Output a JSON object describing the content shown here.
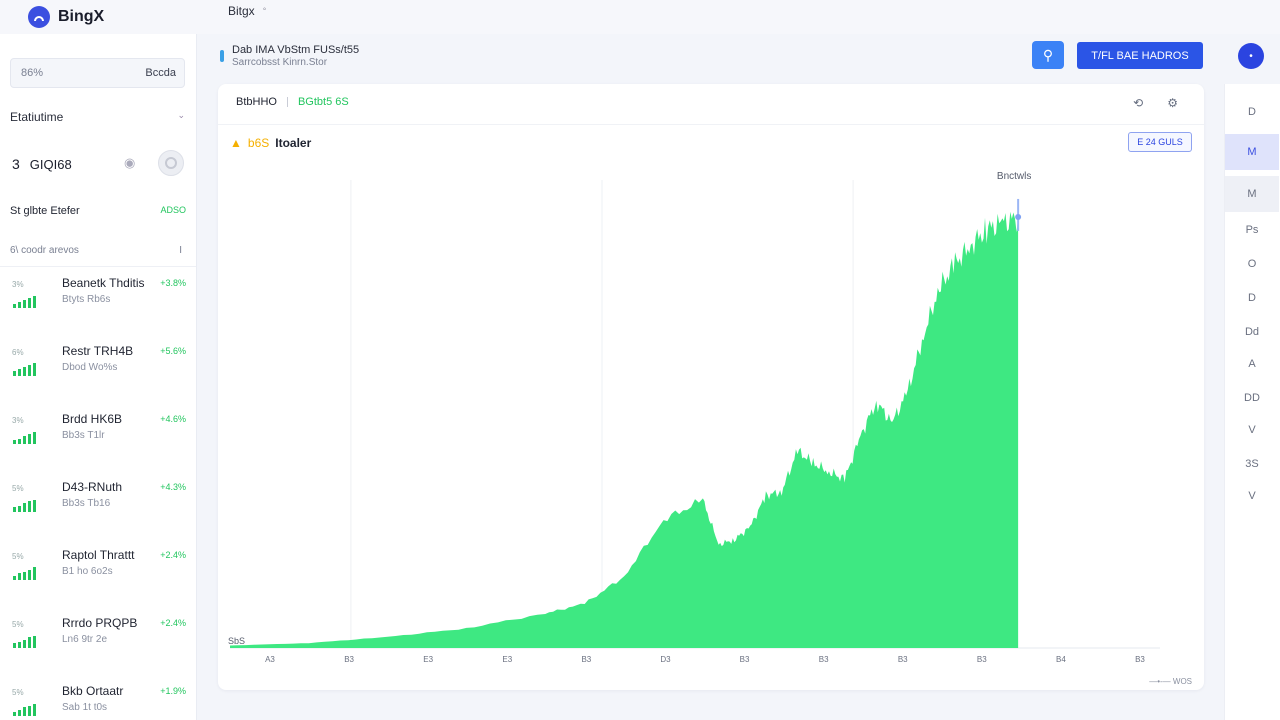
{
  "app": {
    "name": "BingX",
    "breadcrumb": "Bitgx",
    "breadcrumb_chevron": "chevron-down-icon"
  },
  "sidebar": {
    "search_placeholder": "86%",
    "search_selector": "Bccda",
    "section_title": "Etatiutime",
    "count_number": "3",
    "count_label": "GIQI68",
    "filter_label": "St glbte Etefer",
    "filter_value": "ADSO",
    "sub_label": "6\\ coodr arevos",
    "sub_value": "I",
    "assets": [
      {
        "name": "Beanetk Thditis",
        "sub": "Btyts Rb6s",
        "change": "+3.8%",
        "mini": "3%"
      },
      {
        "name": "Restr TRH4B",
        "sub": "Dbod Wo%s",
        "change": "+5.6%",
        "mini": "6%"
      },
      {
        "name": "Brdd HK6B",
        "sub": "Bb3s T1lr",
        "change": "+4.6%",
        "mini": "3%"
      },
      {
        "name": "D43-RNuth",
        "sub": "Bb3s Tb16",
        "change": "+4.3%",
        "mini": "5%"
      },
      {
        "name": "Raptol Thrattt",
        "sub": "B1 ho 6o2s",
        "change": "+2.4%",
        "mini": "5%"
      },
      {
        "name": "Rrrdo PRQPB",
        "sub": "Ln6 9tr 2e",
        "change": "+2.4%",
        "mini": "5%"
      },
      {
        "name": "Bkb Ortaatr",
        "sub": "Sab 1t t0s",
        "change": "+1.9%",
        "mini": "5%"
      }
    ]
  },
  "header": {
    "info_title": "Dab IMA VbStm FUSs/t55",
    "info_subtitle": "Sarrcobsst Kinrn.Stor",
    "action_button": "T/FL BAE HADROS",
    "avatar_initial": "•"
  },
  "card": {
    "pair": "BtbHHO",
    "status": "BGtbt5 6S",
    "refresh_icon": "refresh-icon",
    "settings_icon": "gear-icon",
    "chart_title_price": "b6S",
    "chart_title_label": "Itoaler",
    "range_button": "E 24 GULS",
    "footer": "—•-— WOS"
  },
  "rail": {
    "items": [
      "D",
      "M",
      "M",
      "Ps",
      "O",
      "D",
      "Dd",
      "A",
      "DD",
      "V",
      "3S",
      "V"
    ]
  },
  "colors": {
    "accent": "#2b55e6",
    "positive": "#22c55e",
    "chart_fill": "#3ee882",
    "warn": "#f5b000"
  },
  "chart_data": {
    "type": "area",
    "title": "Itoaler",
    "subtitle": "b6S",
    "annotation": "Bnctwls",
    "y_start_label": "SbS",
    "x_tick_labels": [
      "A3",
      "B3",
      "E3",
      "E3",
      "B3",
      "D3",
      "B3",
      "B3",
      "B3",
      "B3",
      "B4",
      "B3"
    ],
    "grid": true,
    "x": [
      0,
      10,
      20,
      30,
      40,
      45,
      50,
      55,
      60,
      62,
      64,
      66,
      68,
      70,
      72,
      74,
      76,
      78,
      80,
      82,
      84,
      86,
      88,
      90,
      92,
      94,
      96,
      98,
      100
    ],
    "values": [
      2,
      4,
      9,
      16,
      28,
      36,
      58,
      104,
      120,
      84,
      88,
      98,
      124,
      127,
      160,
      150,
      143,
      137,
      172,
      200,
      183,
      208,
      254,
      292,
      312,
      327,
      340,
      345,
      350
    ],
    "ylim": [
      0,
      380
    ],
    "xlim": [
      0,
      118
    ]
  }
}
